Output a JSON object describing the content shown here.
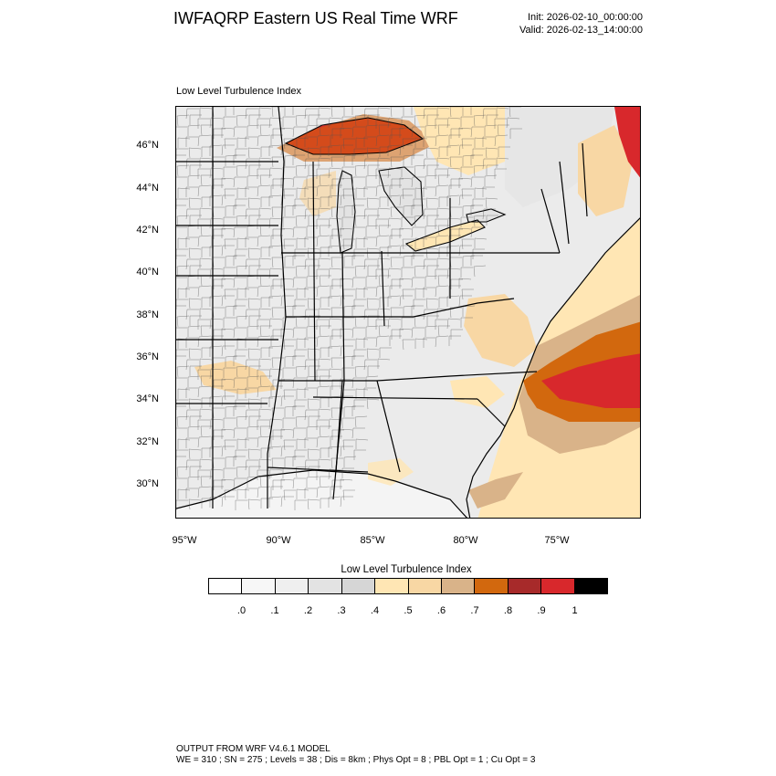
{
  "title": "IWFAQRP Eastern US Real Time WRF",
  "init_label": "Init: 2026-02-10_00:00:00",
  "valid_label": "Valid: 2026-02-13_14:00:00",
  "panel_title": "Low Level Turbulence Index",
  "lat_labels": [
    "46°N",
    "44°N",
    "42°N",
    "40°N",
    "38°N",
    "36°N",
    "34°N",
    "32°N",
    "30°N"
  ],
  "lon_labels": [
    "95°W",
    "90°W",
    "85°W",
    "80°W",
    "75°W"
  ],
  "legend": {
    "title": "Low Level Turbulence Index",
    "colors": [
      "#ffffff",
      "#f7f7f7",
      "#efefef",
      "#e3e3e3",
      "#d6d6d6",
      "#ffe6b4",
      "#f8d7a4",
      "#d9b389",
      "#d2680e",
      "#a72a2a",
      "#d8282c",
      "#000000"
    ],
    "ticks": [
      ".0",
      ".1",
      ".2",
      ".3",
      ".4",
      ".5",
      ".6",
      ".7",
      ".8",
      ".9",
      "1"
    ]
  },
  "footer": {
    "line1": "OUTPUT FROM WRF V4.6.1 MODEL",
    "line2": "WE = 310 ; SN = 275 ; Levels = 38 ; Dis = 8km ; Phys Opt = 8 ; PBL Opt = 1 ; Cu Opt = 3"
  }
}
